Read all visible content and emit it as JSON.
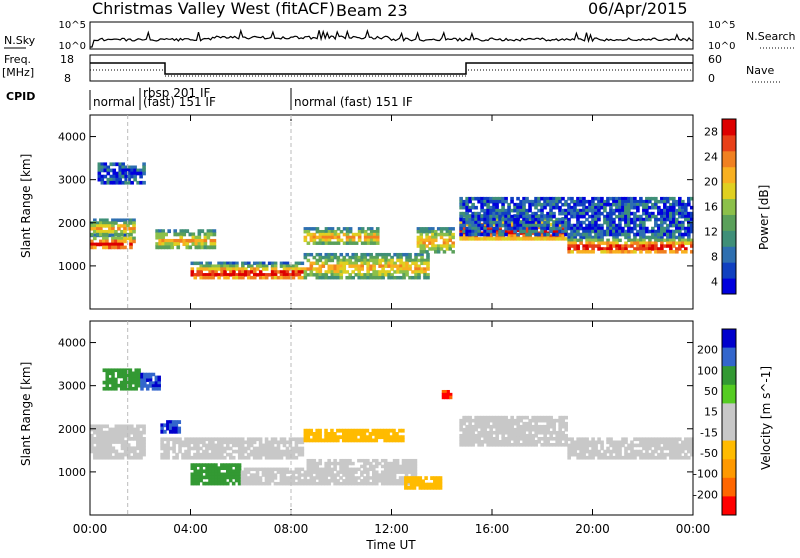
{
  "header": {
    "title": "Christmas Valley West (fitACF)",
    "beam": "Beam 23",
    "date": "06/Apr/2015"
  },
  "labels": {
    "nsky": "N.Sky",
    "nsearch": "N.Search",
    "freq": "Freq.",
    "freq_unit": "[MHz]",
    "cpid": "CPID",
    "nave": "Nave"
  },
  "top_axes": {
    "nsky_ticks": [
      "10^5",
      "10^0"
    ],
    "nsearch_ticks": [
      "10^5",
      "10^0"
    ],
    "freq_ticks": [
      "18",
      "8"
    ],
    "nave_ticks": [
      "60",
      "0"
    ]
  },
  "cpid_segments": [
    {
      "label": "normal",
      "start": 0.0,
      "end": 1.6
    },
    {
      "label": "rbsp 201 IF",
      "start": 1.6,
      "end": 3.0
    },
    {
      "label": "(fast) 151 IF",
      "start": 1.6,
      "end": 8.0
    },
    {
      "label": "normal (fast) 151 IF",
      "start": 8.0,
      "end": 24.0
    }
  ],
  "colors": {
    "power": [
      "#0000dd",
      "#1040c0",
      "#2e6fb0",
      "#3f8f78",
      "#5aa05a",
      "#8cc04a",
      "#e0d020",
      "#f8b020",
      "#f08020",
      "#e84018",
      "#dd0000"
    ],
    "velocity": [
      "#ff0000",
      "#ff6600",
      "#ff9900",
      "#ffbb00",
      "#c8c8c8",
      "#c8c8c8",
      "#55cc22",
      "#339933",
      "#3366cc",
      "#0000cc"
    ]
  },
  "chart_data": [
    {
      "type": "heatmap",
      "name": "power",
      "xlabel": "",
      "ylabel": "Slant Range [km]",
      "xlim": [
        0,
        24
      ],
      "ylim": [
        0,
        4500
      ],
      "yticks": [
        "1000",
        "2000",
        "3000",
        "4000"
      ],
      "colorbar": {
        "label": "Power [dB]",
        "ticks": [
          "4",
          "8",
          "12",
          "16",
          "20",
          "24",
          "28"
        ]
      },
      "bands": [
        {
          "t": [
            0.0,
            1.8
          ],
          "r": [
            1400,
            1750
          ],
          "level": "high"
        },
        {
          "t": [
            0.0,
            1.8
          ],
          "r": [
            1700,
            2100
          ],
          "level": "mid"
        },
        {
          "t": [
            0.3,
            2.2
          ],
          "r": [
            2900,
            3400
          ],
          "level": "low"
        },
        {
          "t": [
            2.6,
            5.0
          ],
          "r": [
            1400,
            1850
          ],
          "level": "mid"
        },
        {
          "t": [
            4.0,
            8.5
          ],
          "r": [
            700,
            1100
          ],
          "level": "high"
        },
        {
          "t": [
            8.5,
            13.5
          ],
          "r": [
            700,
            1300
          ],
          "level": "mid"
        },
        {
          "t": [
            8.5,
            11.5
          ],
          "r": [
            1500,
            1900
          ],
          "level": "mid"
        },
        {
          "t": [
            13.0,
            14.5
          ],
          "r": [
            1300,
            1900
          ],
          "level": "mid"
        },
        {
          "t": [
            14.7,
            19.0
          ],
          "r": [
            1600,
            2200
          ],
          "level": "high"
        },
        {
          "t": [
            19.0,
            24.0
          ],
          "r": [
            1300,
            1700
          ],
          "level": "high"
        },
        {
          "t": [
            14.7,
            24.0
          ],
          "r": [
            1700,
            2600
          ],
          "level": "low"
        }
      ]
    },
    {
      "type": "heatmap",
      "name": "velocity",
      "xlabel": "Time UT",
      "ylabel": "Slant Range [km]",
      "xlim": [
        0,
        24
      ],
      "ylim": [
        0,
        4500
      ],
      "xticks": [
        "00:00",
        "04:00",
        "08:00",
        "12:00",
        "16:00",
        "20:00",
        "00:00"
      ],
      "yticks": [
        "1000",
        "2000",
        "3000",
        "4000"
      ],
      "colorbar": {
        "label": "Velocity [m s^-1]",
        "ticks": [
          "200",
          "100",
          "50",
          "15",
          "-15",
          "-50",
          "-100",
          "-200"
        ]
      },
      "bands": [
        {
          "t": [
            0.0,
            2.2
          ],
          "r": [
            1300,
            2100
          ],
          "v": 0
        },
        {
          "t": [
            0.5,
            2.0
          ],
          "r": [
            2900,
            3400
          ],
          "v": 60
        },
        {
          "t": [
            2.0,
            2.8
          ],
          "r": [
            2900,
            3300
          ],
          "v": 200
        },
        {
          "t": [
            2.8,
            3.6
          ],
          "r": [
            1900,
            2200
          ],
          "v": 200
        },
        {
          "t": [
            2.8,
            8.5
          ],
          "r": [
            1300,
            1800
          ],
          "v": 0
        },
        {
          "t": [
            4.0,
            6.0
          ],
          "r": [
            700,
            1200
          ],
          "v": 60
        },
        {
          "t": [
            6.0,
            8.5
          ],
          "r": [
            700,
            1100
          ],
          "v": 0
        },
        {
          "t": [
            8.5,
            12.5
          ],
          "r": [
            1700,
            2000
          ],
          "v": -40
        },
        {
          "t": [
            8.5,
            13.0
          ],
          "r": [
            700,
            1300
          ],
          "v": 0
        },
        {
          "t": [
            12.5,
            14.0
          ],
          "r": [
            600,
            900
          ],
          "v": -40
        },
        {
          "t": [
            14.0,
            14.4
          ],
          "r": [
            2700,
            2900
          ],
          "v": -200
        },
        {
          "t": [
            14.7,
            19.0
          ],
          "r": [
            1600,
            2300
          ],
          "v": 0
        },
        {
          "t": [
            19.0,
            24.0
          ],
          "r": [
            1300,
            1800
          ],
          "v": 0
        }
      ]
    }
  ]
}
